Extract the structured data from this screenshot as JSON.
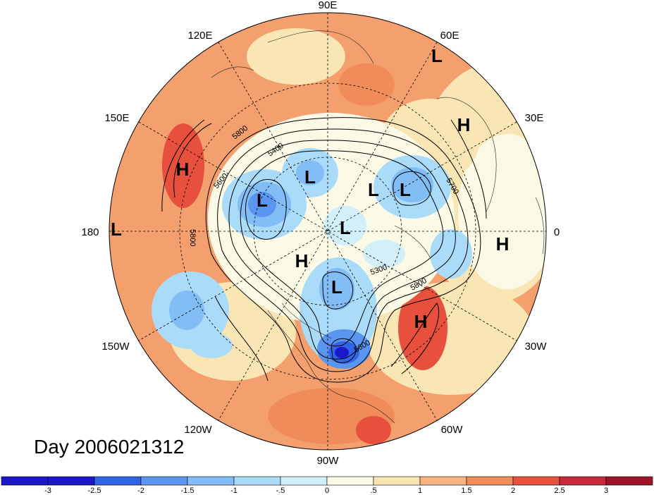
{
  "map": {
    "title": "Day 2006021312",
    "longitude_labels": [
      "90E",
      "60E",
      "30E",
      "0",
      "30W",
      "60W",
      "90W",
      "120W",
      "150W",
      "180",
      "150E",
      "120E"
    ],
    "pressure_systems": [
      {
        "type": "L",
        "label": "L"
      },
      {
        "type": "L",
        "label": "L"
      },
      {
        "type": "L",
        "label": "L"
      },
      {
        "type": "L",
        "label": "L"
      },
      {
        "type": "L",
        "label": "L"
      },
      {
        "type": "L",
        "label": "L"
      },
      {
        "type": "L",
        "label": "L"
      },
      {
        "type": "L",
        "label": "L"
      },
      {
        "type": "H",
        "label": "H"
      },
      {
        "type": "H",
        "label": "H"
      },
      {
        "type": "H",
        "label": "H"
      },
      {
        "type": "H",
        "label": "H"
      },
      {
        "type": "H",
        "label": "H"
      }
    ],
    "contour_labels": [
      "5800",
      "5400",
      "5600",
      "5700",
      "5800",
      "5300",
      "5800",
      "5600"
    ]
  },
  "colorbar": {
    "ticks": [
      "-3",
      "-2.5",
      "-2",
      "-1.5",
      "-1",
      "-.5",
      "0",
      ".5",
      "1",
      "1.5",
      "2",
      "2.5",
      "3"
    ],
    "colors": [
      "#1a18c8",
      "#3264e6",
      "#5a96f0",
      "#82bef5",
      "#aadcfa",
      "#d2f0fa",
      "#fafae6",
      "#fae6b4",
      "#f5b482",
      "#f08c5a",
      "#e6503c",
      "#c8283c",
      "#a01428"
    ]
  }
}
